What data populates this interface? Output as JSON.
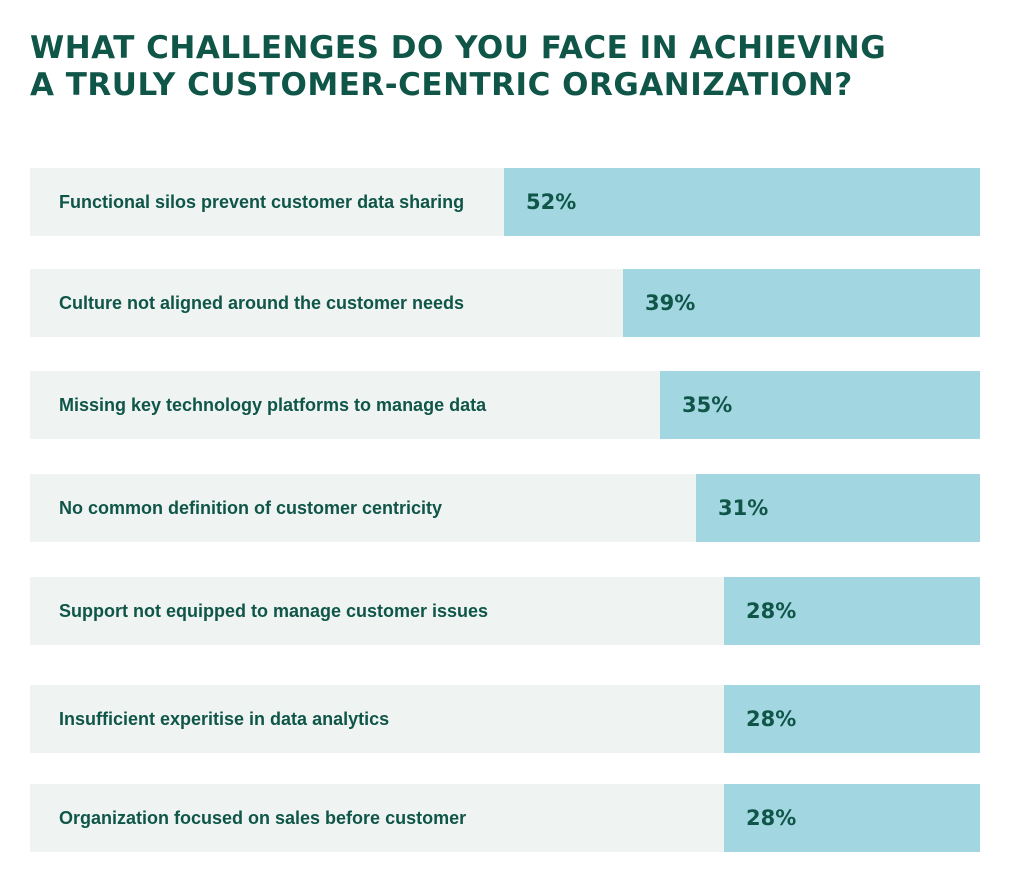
{
  "chart_data": {
    "type": "bar",
    "orientation": "horizontal",
    "title_lines": [
      "WHAT CHALLENGES DO YOU FACE IN ACHIEVING",
      "A TRULY CUSTOMER-CENTRIC ORGANIZATION?"
    ],
    "categories": [
      "Functional silos prevent customer data sharing",
      "Culture not aligned around the customer needs",
      "Missing key technology platforms to manage data",
      "No common definition of customer centricity",
      "Support not equipped to manage customer issues",
      "Insufficient experitise in data analytics",
      "Organization focused on sales before customer"
    ],
    "values": [
      52,
      39,
      35,
      31,
      28,
      28,
      28
    ],
    "value_labels": [
      "52%",
      "39%",
      "35%",
      "31%",
      "28%",
      "28%",
      "28%"
    ],
    "xlim": [
      0,
      100
    ],
    "grid": false,
    "legend": "none"
  },
  "colors": {
    "title": "#0f5548",
    "text": "#0f5548",
    "track": "#eff4f3",
    "bar": "#a2d7e2"
  }
}
